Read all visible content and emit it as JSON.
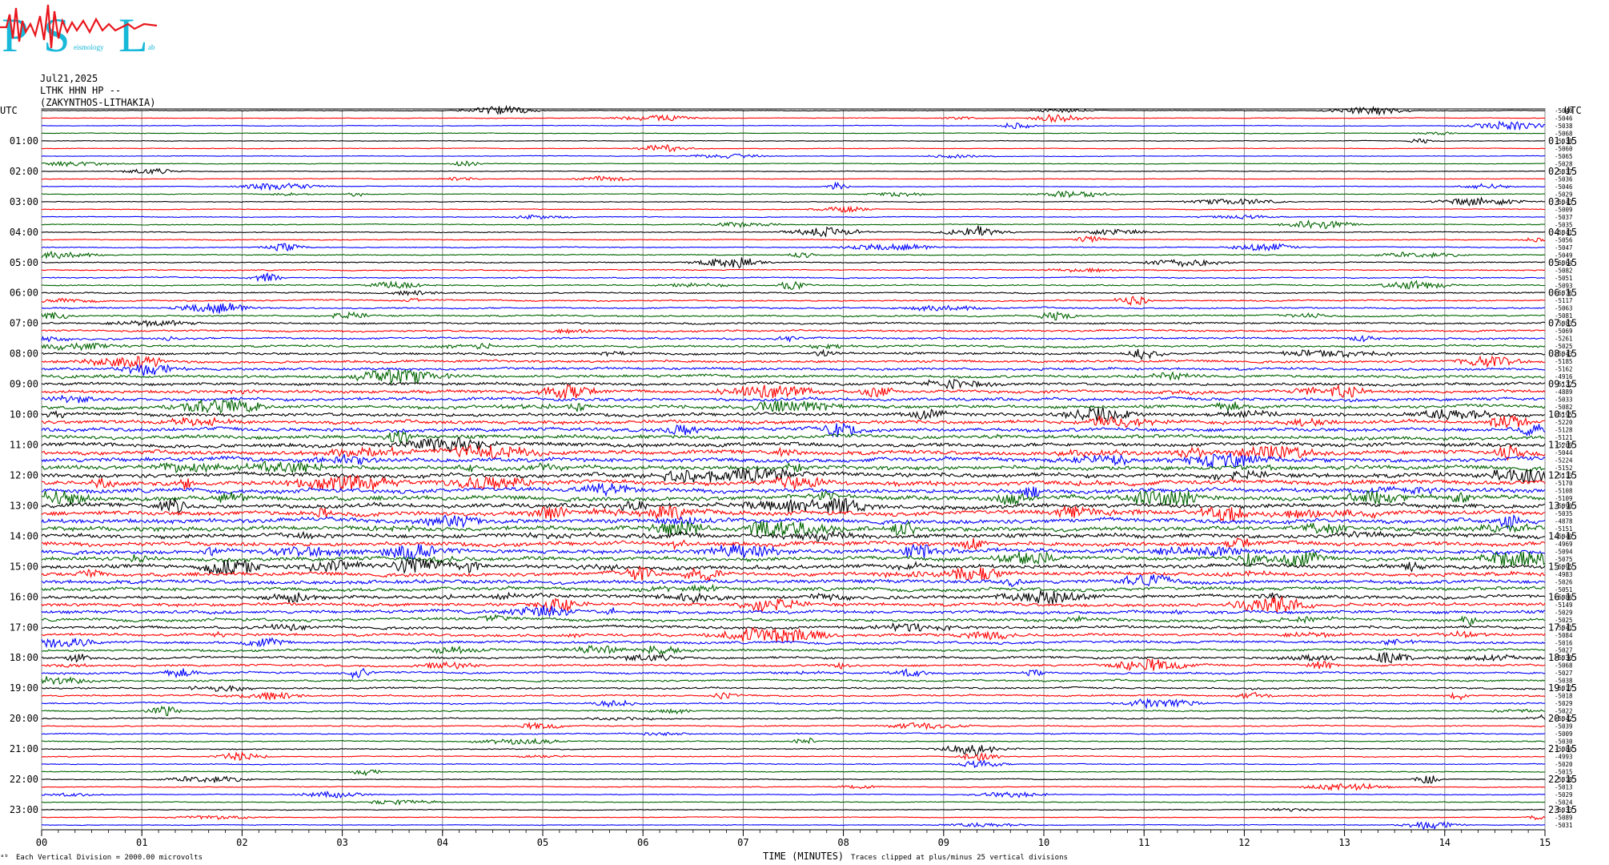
{
  "header": {
    "date": "Jul21,2025",
    "station": "LTHK HHN HP --",
    "location": "(ZAKYNTHOS-LITHAKIA)"
  },
  "logo": {
    "letters": [
      "P",
      "S",
      "L"
    ],
    "small_words": [
      "eismology",
      "ab"
    ]
  },
  "chart_data": {
    "type": "line",
    "title": "",
    "xlabel": "TIME (MINUTES)",
    "ylabel": "",
    "xlim": [
      0,
      15
    ],
    "x_ticks": [
      "00",
      "01",
      "02",
      "03",
      "04",
      "05",
      "06",
      "07",
      "08",
      "09",
      "10",
      "11",
      "12",
      "13",
      "14",
      "15"
    ],
    "left_axis_label": "UTC",
    "right_axis_label": "UTC",
    "left_hour_labels": [
      "01:00",
      "02:00",
      "03:00",
      "04:00",
      "05:00",
      "06:00",
      "07:00",
      "08:00",
      "09:00",
      "10:00",
      "11:00",
      "12:00",
      "13:00",
      "14:00",
      "15:00",
      "16:00",
      "17:00",
      "18:00",
      "19:00",
      "20:00",
      "21:00",
      "22:00",
      "23:00"
    ],
    "right_hour_labels": [
      "01:15",
      "02:15",
      "03:15",
      "04:15",
      "05:15",
      "06:15",
      "07:15",
      "08:15",
      "09:15",
      "10:15",
      "11:15",
      "12:15",
      "13:15",
      "14:15",
      "15:15",
      "16:15",
      "17:15",
      "18:15",
      "19:15",
      "20:15",
      "21:15",
      "22:15",
      "23:15"
    ],
    "trace_colors": [
      "#000000",
      "#ff0000",
      "#0000ff",
      "#006400"
    ],
    "trace_offsets": [
      "-5040",
      "-5046",
      "-5038",
      "-5068",
      "-5038",
      "-5060",
      "-5065",
      "-5028",
      "-5037",
      "-5036",
      "-5046",
      "-5029",
      "-5043",
      "-5009",
      "-5037",
      "-5035",
      "-5041",
      "-5056",
      "-5047",
      "-5049",
      "-5064",
      "-5082",
      "-5051",
      "-5093",
      "-5076",
      "-5117",
      "-5063",
      "-5081",
      "-5083",
      "-5069",
      "-5261",
      "-5025",
      "-5043",
      "-5185",
      "-5162",
      "-4916",
      "-5122",
      "-4889",
      "-5033",
      "-5082",
      "-5195",
      "-5220",
      "-5128",
      "-5121",
      "-5209",
      "-5044",
      "-5224",
      "-5152",
      "-5113",
      "-5170",
      "-5108",
      "-5109",
      "-5090",
      "-5035",
      "-4878",
      "-5151",
      "-5040",
      "-4969",
      "-5094",
      "-5075",
      "-5095",
      "-4983",
      "-5026",
      "-5051",
      "-5086",
      "-5149",
      "-5029",
      "-5025",
      "-5041",
      "-5084",
      "-5016",
      "-5027",
      "-5030",
      "-5068",
      "-5027",
      "-5038",
      "-5017",
      "-5018",
      "-5029",
      "-5022",
      "-5042",
      "-5039",
      "-5009",
      "-5030",
      "-5084",
      "-4993",
      "-5020",
      "-5015",
      "-5018",
      "-5013",
      "-5029",
      "-5024",
      "-5033",
      "-5089",
      "-5031"
    ],
    "scale_note": "Each Vertical Division = 2000.00 microvolts",
    "clip_note": "Traces clipped at plus/minus 25 vertical divisions",
    "corner_mark": "ᵃᵇ",
    "grid": true
  }
}
